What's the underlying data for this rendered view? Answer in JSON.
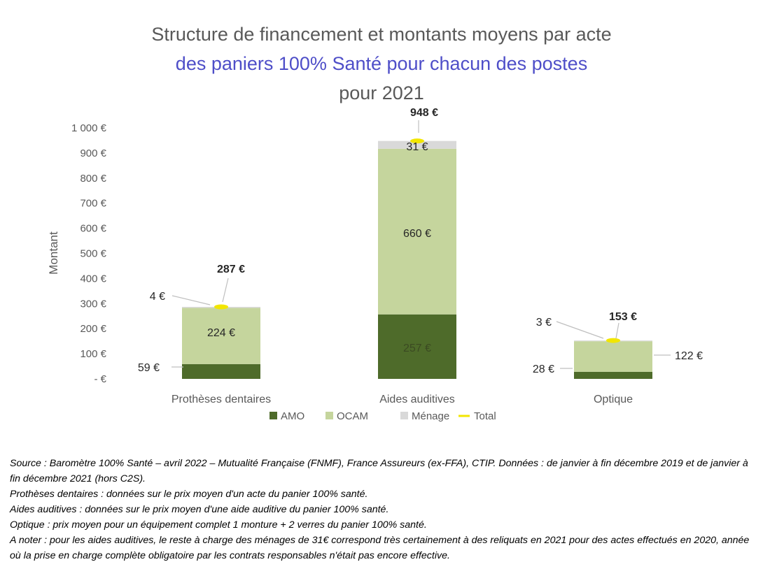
{
  "title": {
    "line1": "Structure de financement et montants moyens par acte",
    "line2": "des paniers 100% Santé pour chacun des postes",
    "line3": "pour 2021"
  },
  "colors": {
    "amo": "#4e6b2a",
    "ocam": "#c5d59d",
    "menage": "#d9d9d9",
    "total": "#f2e600",
    "axis_text": "#595959",
    "title_accent": "#4e4ec8"
  },
  "chart_data": {
    "type": "bar",
    "stacked": true,
    "categories": [
      "Prothèses dentaires",
      "Aides auditives",
      "Optique"
    ],
    "series": [
      {
        "name": "AMO",
        "values": [
          59,
          257,
          28
        ]
      },
      {
        "name": "OCAM",
        "values": [
          224,
          660,
          122
        ]
      },
      {
        "name": "Ménage",
        "values": [
          4,
          31,
          3
        ]
      }
    ],
    "total": {
      "name": "Total",
      "values": [
        287,
        948,
        153
      ]
    },
    "ylabel": "Montant",
    "ylim": [
      0,
      1000
    ],
    "yticks": [
      {
        "value": 0,
        "label": "- €"
      },
      {
        "value": 100,
        "label": "100 €"
      },
      {
        "value": 200,
        "label": "200 €"
      },
      {
        "value": 300,
        "label": "300 €"
      },
      {
        "value": 400,
        "label": "400 €"
      },
      {
        "value": 500,
        "label": "500 €"
      },
      {
        "value": 600,
        "label": "600 €"
      },
      {
        "value": 700,
        "label": "700 €"
      },
      {
        "value": 800,
        "label": "800 €"
      },
      {
        "value": 900,
        "label": "900 €"
      },
      {
        "value": 1000,
        "label": "1 000 €"
      }
    ],
    "labels": {
      "amo": [
        "59 €",
        "257 €",
        "28 €"
      ],
      "ocam": [
        "224 €",
        "660 €",
        "122 €"
      ],
      "menage": [
        "4 €",
        "31 €",
        "3 €"
      ],
      "total": [
        "287 €",
        "948 €",
        "153 €"
      ]
    },
    "legend": {
      "position": "bottom",
      "items": [
        {
          "key": "amo",
          "label": "AMO"
        },
        {
          "key": "ocam",
          "label": "OCAM"
        },
        {
          "key": "menage",
          "label": "Ménage"
        },
        {
          "key": "total",
          "label": "Total"
        }
      ]
    },
    "grid": false
  },
  "notes": [
    "Source : Baromètre 100% Santé – avril 2022 – Mutualité Française (FNMF), France Assureurs (ex-FFA), CTIP. Données : de janvier à fin décembre 2019 et de janvier à fin décembre 2021 (hors C2S).",
    "Prothèses dentaires : données sur le prix moyen d'un acte du panier 100% santé.",
    "Aides auditives : données sur le prix moyen d'une aide auditive du panier 100% santé.",
    "Optique : prix moyen pour un équipement complet 1 monture + 2 verres du panier 100% santé.",
    "A noter : pour les aides auditives, le reste à charge des ménages de 31€ correspond très certainement à des reliquats en 2021 pour des actes effectués en 2020, année où la prise en charge complète obligatoire par les contrats responsables n'était pas encore effective."
  ]
}
